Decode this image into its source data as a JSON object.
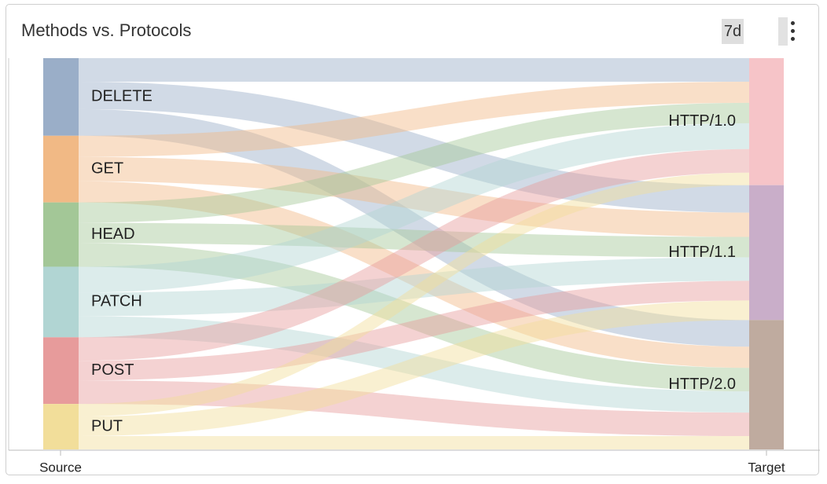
{
  "chart_data": {
    "type": "sankey",
    "title": "Methods vs. Protocols",
    "range_label": "7d",
    "source_axis_label": "Source",
    "target_axis_label": "Target",
    "sources": [
      {
        "name": "DELETE",
        "color": "#9aaec8"
      },
      {
        "name": "GET",
        "color": "#f1b985"
      },
      {
        "name": "HEAD",
        "color": "#a3c797"
      },
      {
        "name": "PATCH",
        "color": "#b1d5d3"
      },
      {
        "name": "POST",
        "color": "#e79b9b"
      },
      {
        "name": "PUT",
        "color": "#f2de9a"
      }
    ],
    "targets": [
      {
        "name": "HTTP/1.0",
        "color": "#f6c4c8"
      },
      {
        "name": "HTTP/1.1",
        "color": "#c9aec9"
      },
      {
        "name": "HTTP/2.0",
        "color": "#bfab9f"
      }
    ],
    "links": [
      {
        "source": "DELETE",
        "target": "HTTP/1.0",
        "value": 30
      },
      {
        "source": "DELETE",
        "target": "HTTP/1.1",
        "value": 35
      },
      {
        "source": "DELETE",
        "target": "HTTP/2.0",
        "value": 34
      },
      {
        "source": "GET",
        "target": "HTTP/1.0",
        "value": 27
      },
      {
        "source": "GET",
        "target": "HTTP/1.1",
        "value": 31
      },
      {
        "source": "GET",
        "target": "HTTP/2.0",
        "value": 27
      },
      {
        "source": "HEAD",
        "target": "HTTP/1.0",
        "value": 26
      },
      {
        "source": "HEAD",
        "target": "HTTP/1.1",
        "value": 26
      },
      {
        "source": "HEAD",
        "target": "HTTP/2.0",
        "value": 30
      },
      {
        "source": "PATCH",
        "target": "HTTP/1.0",
        "value": 33
      },
      {
        "source": "PATCH",
        "target": "HTTP/1.1",
        "value": 30
      },
      {
        "source": "PATCH",
        "target": "HTTP/2.0",
        "value": 27
      },
      {
        "source": "POST",
        "target": "HTTP/1.0",
        "value": 30
      },
      {
        "source": "POST",
        "target": "HTTP/1.1",
        "value": 25
      },
      {
        "source": "POST",
        "target": "HTTP/2.0",
        "value": 30
      },
      {
        "source": "PUT",
        "target": "HTTP/1.0",
        "value": 16
      },
      {
        "source": "PUT",
        "target": "HTTP/1.1",
        "value": 25
      },
      {
        "source": "PUT",
        "target": "HTTP/2.0",
        "value": 17
      }
    ]
  }
}
